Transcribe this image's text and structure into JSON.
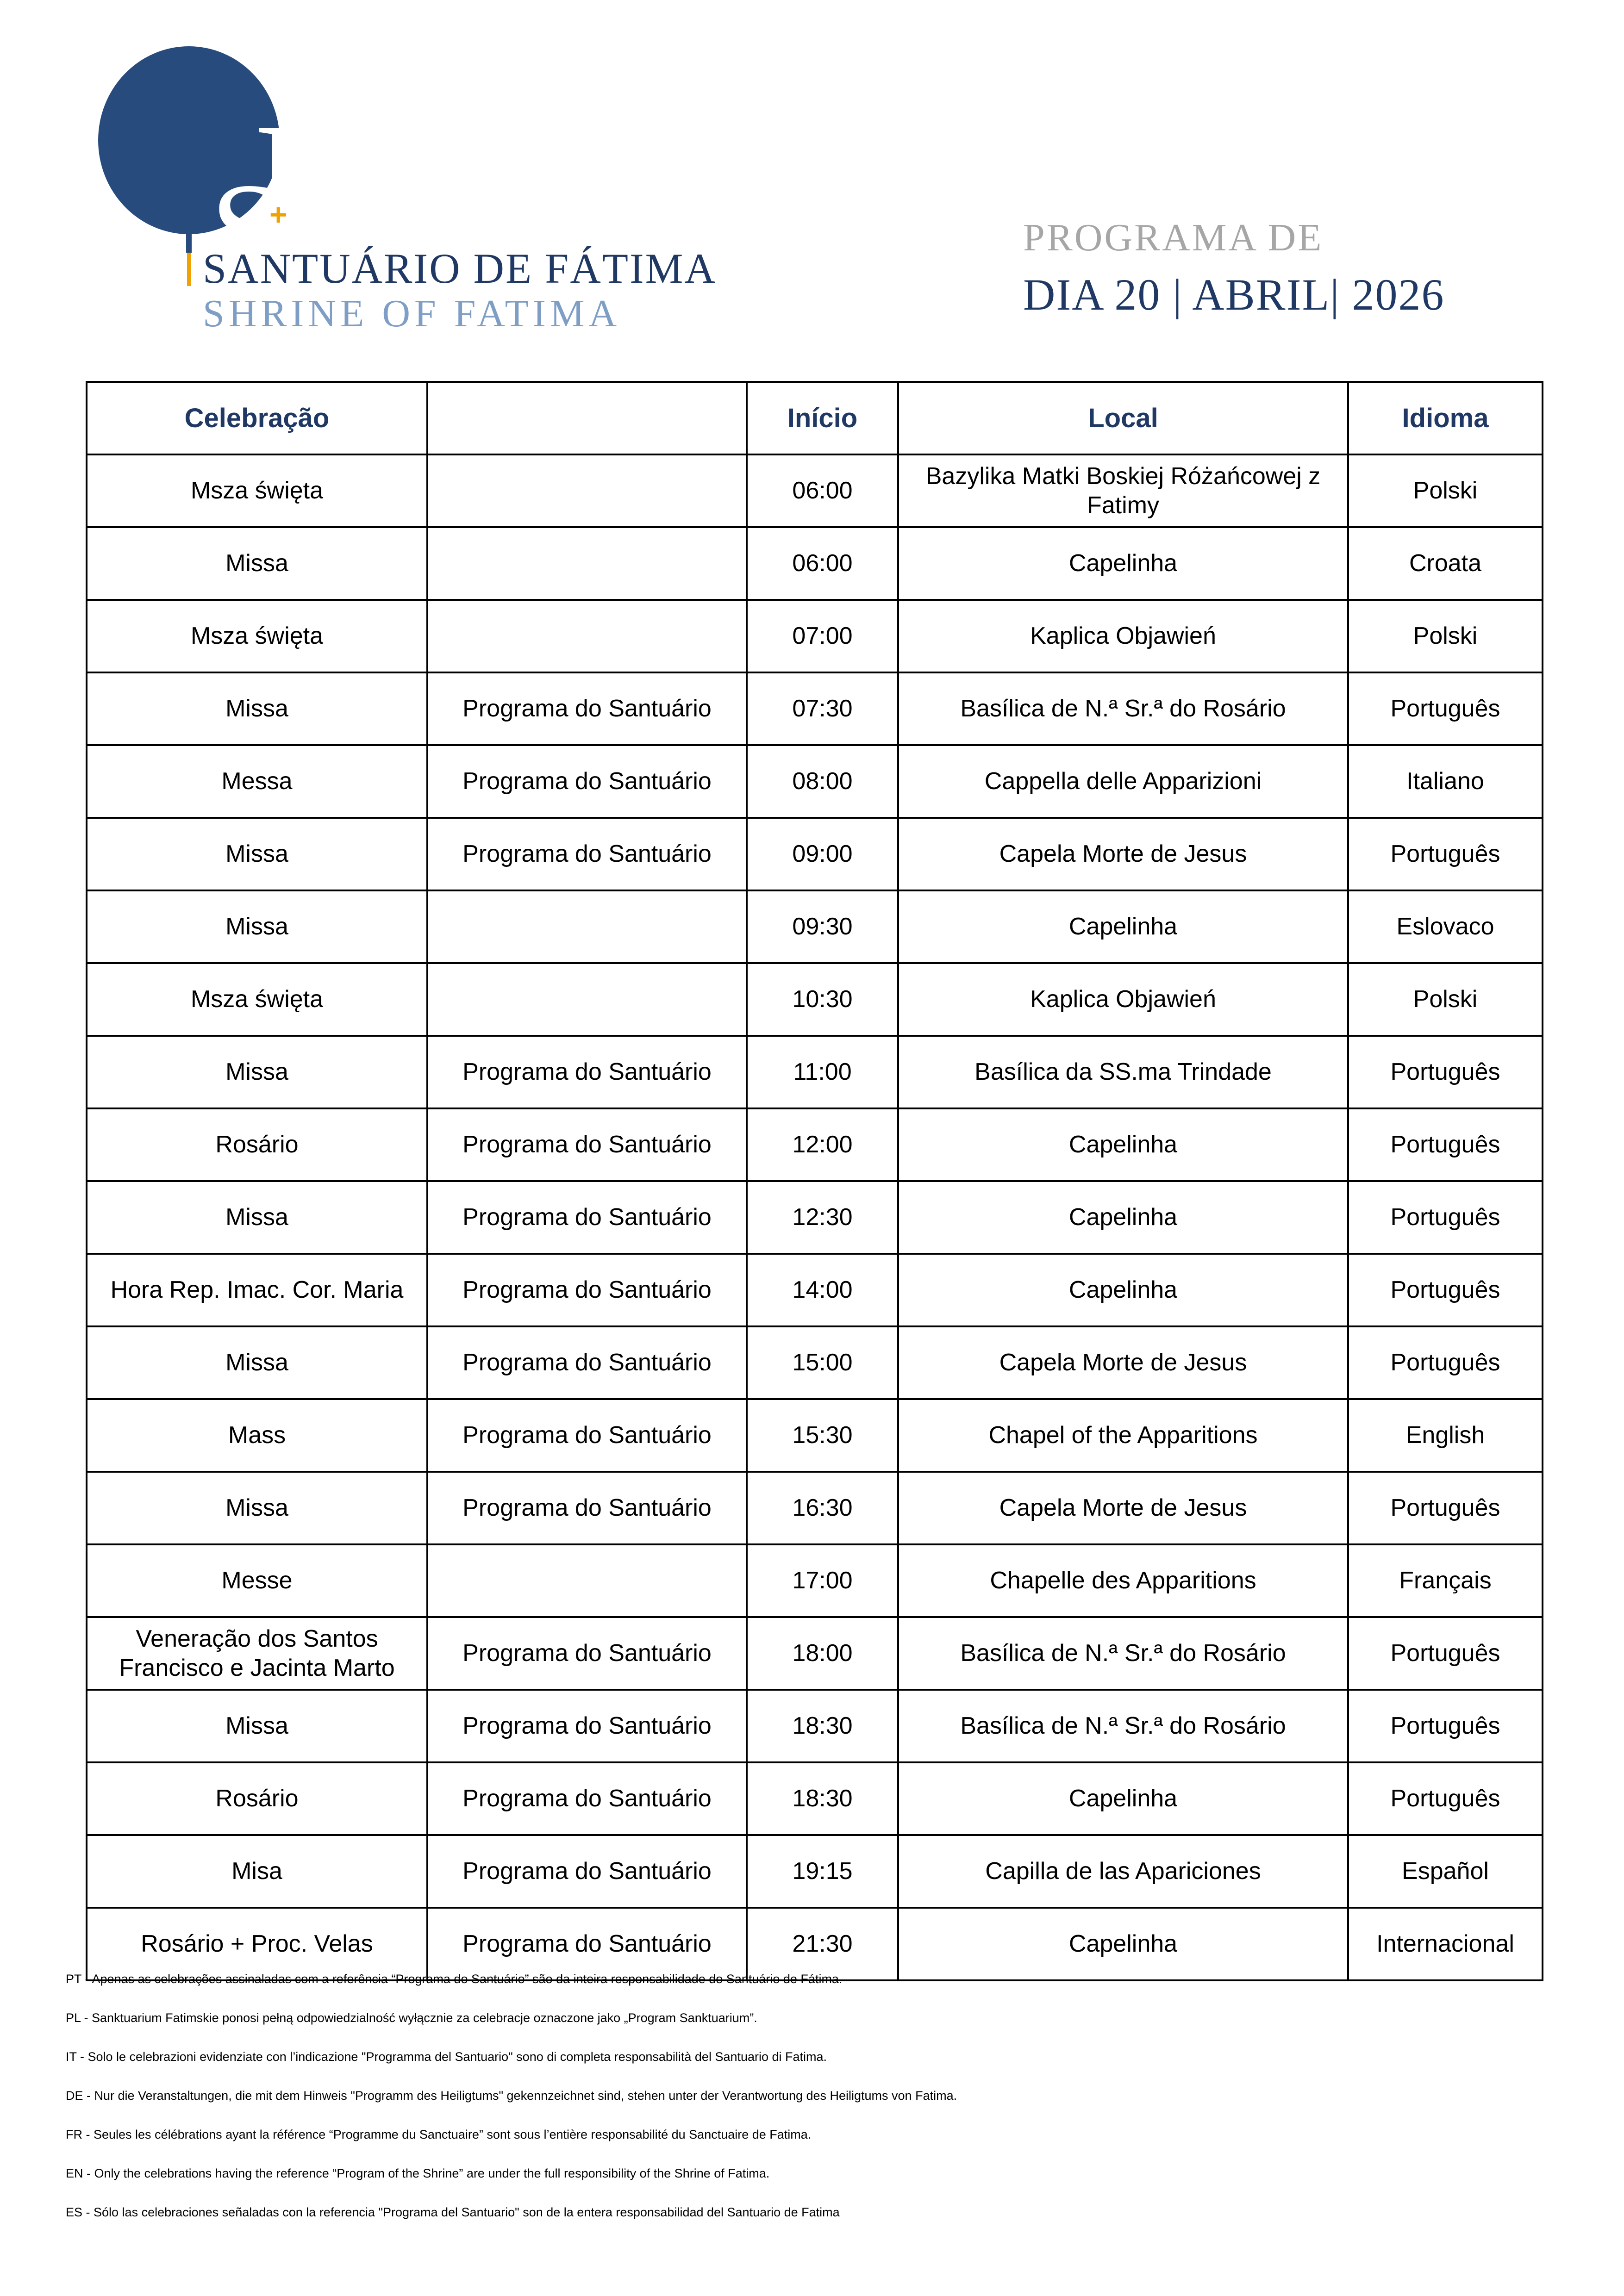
{
  "colors": {
    "navy_dark": "#1F3864",
    "navy_oval": "#274B7D",
    "blue_light": "#7F9EC6",
    "gray_title": "#A6A6A6",
    "gold": "#F0A202",
    "border": "#000000"
  },
  "logo": {
    "monogram_s": "S",
    "monogram_f": "F",
    "cross": "+",
    "name_pt": "SANTUÁRIO DE FÁTIMA",
    "name_en": "SHRINE OF FATIMA"
  },
  "title": {
    "line1": "PROGRAMA DE",
    "line2": "DIA 20 | ABRIL| 2026"
  },
  "table": {
    "headers": [
      "Celebração",
      "",
      "Início",
      "Local",
      "Idioma"
    ],
    "rows": [
      [
        "Msza święta",
        "",
        "06:00",
        "Bazylika Matki Boskiej Różańcowej z Fatimy",
        "Polski"
      ],
      [
        "Missa",
        "",
        "06:00",
        "Capelinha",
        "Croata"
      ],
      [
        "Msza święta",
        "",
        "07:00",
        "Kaplica Objawień",
        "Polski"
      ],
      [
        "Missa",
        "Programa do Santuário",
        "07:30",
        "Basílica de N.ª Sr.ª do Rosário",
        "Português"
      ],
      [
        "Messa",
        "Programa do Santuário",
        "08:00",
        "Cappella delle Apparizioni",
        "Italiano"
      ],
      [
        "Missa",
        "Programa do Santuário",
        "09:00",
        "Capela Morte de Jesus",
        "Português"
      ],
      [
        "Missa",
        "",
        "09:30",
        "Capelinha",
        "Eslovaco"
      ],
      [
        "Msza święta",
        "",
        "10:30",
        "Kaplica Objawień",
        "Polski"
      ],
      [
        "Missa",
        "Programa do Santuário",
        "11:00",
        "Basílica da SS.ma Trindade",
        "Português"
      ],
      [
        "Rosário",
        "Programa do Santuário",
        "12:00",
        "Capelinha",
        "Português"
      ],
      [
        "Missa",
        "Programa do Santuário",
        "12:30",
        "Capelinha",
        "Português"
      ],
      [
        "Hora Rep. Imac. Cor. Maria",
        "Programa do Santuário",
        "14:00",
        "Capelinha",
        "Português"
      ],
      [
        "Missa",
        "Programa do Santuário",
        "15:00",
        "Capela Morte de Jesus",
        "Português"
      ],
      [
        "Mass",
        "Programa do Santuário",
        "15:30",
        "Chapel of the Apparitions",
        "English"
      ],
      [
        "Missa",
        "Programa do Santuário",
        "16:30",
        "Capela Morte de Jesus",
        "Português"
      ],
      [
        "Messe",
        "",
        "17:00",
        "Chapelle des Apparitions",
        "Français"
      ],
      [
        "Veneração dos Santos Francisco e Jacinta Marto",
        "Programa do Santuário",
        "18:00",
        "Basílica de N.ª Sr.ª do Rosário",
        "Português"
      ],
      [
        "Missa",
        "Programa do Santuário",
        "18:30",
        "Basílica de N.ª Sr.ª do Rosário",
        "Português"
      ],
      [
        "Rosário",
        "Programa do Santuário",
        "18:30",
        "Capelinha",
        "Português"
      ],
      [
        "Misa",
        "Programa do Santuário",
        "19:15",
        "Capilla de las Apariciones",
        "Español"
      ],
      [
        "Rosário + Proc. Velas",
        "Programa do Santuário",
        "21:30",
        "Capelinha",
        "Internacional"
      ]
    ]
  },
  "footnotes": [
    "PT - Apenas as celebrações assinaladas com a referência “Programa do Santuário” são da inteira responsabilidade do Santuário de Fátima.",
    "PL - Sanktuarium Fatimskie ponosi pełną odpowiedzialność wyłącznie za celebracje oznaczone jako „Program Sanktuarium”.",
    "IT - Solo le celebrazioni evidenziate con l’indicazione \"Programma del Santuario\" sono di completa responsabilità del Santuario di Fatima.",
    "DE - Nur die Veranstaltungen, die mit dem Hinweis \"Programm des Heiligtums\" gekennzeichnet sind, stehen unter der Verantwortung des Heiligtums von Fatima.",
    "FR - Seules les célébrations ayant la référence “Programme du Sanctuaire” sont sous l’entière responsabilité du Sanctuaire de Fatima.",
    "EN - Only the celebrations having the reference “Program of the Shrine” are under the full responsibility of the Shrine of Fatima.",
    "ES - Sólo las celebraciones señaladas con la referencia \"Programa del Santuario\" son de la entera responsabilidad del Santuario de Fatima"
  ]
}
